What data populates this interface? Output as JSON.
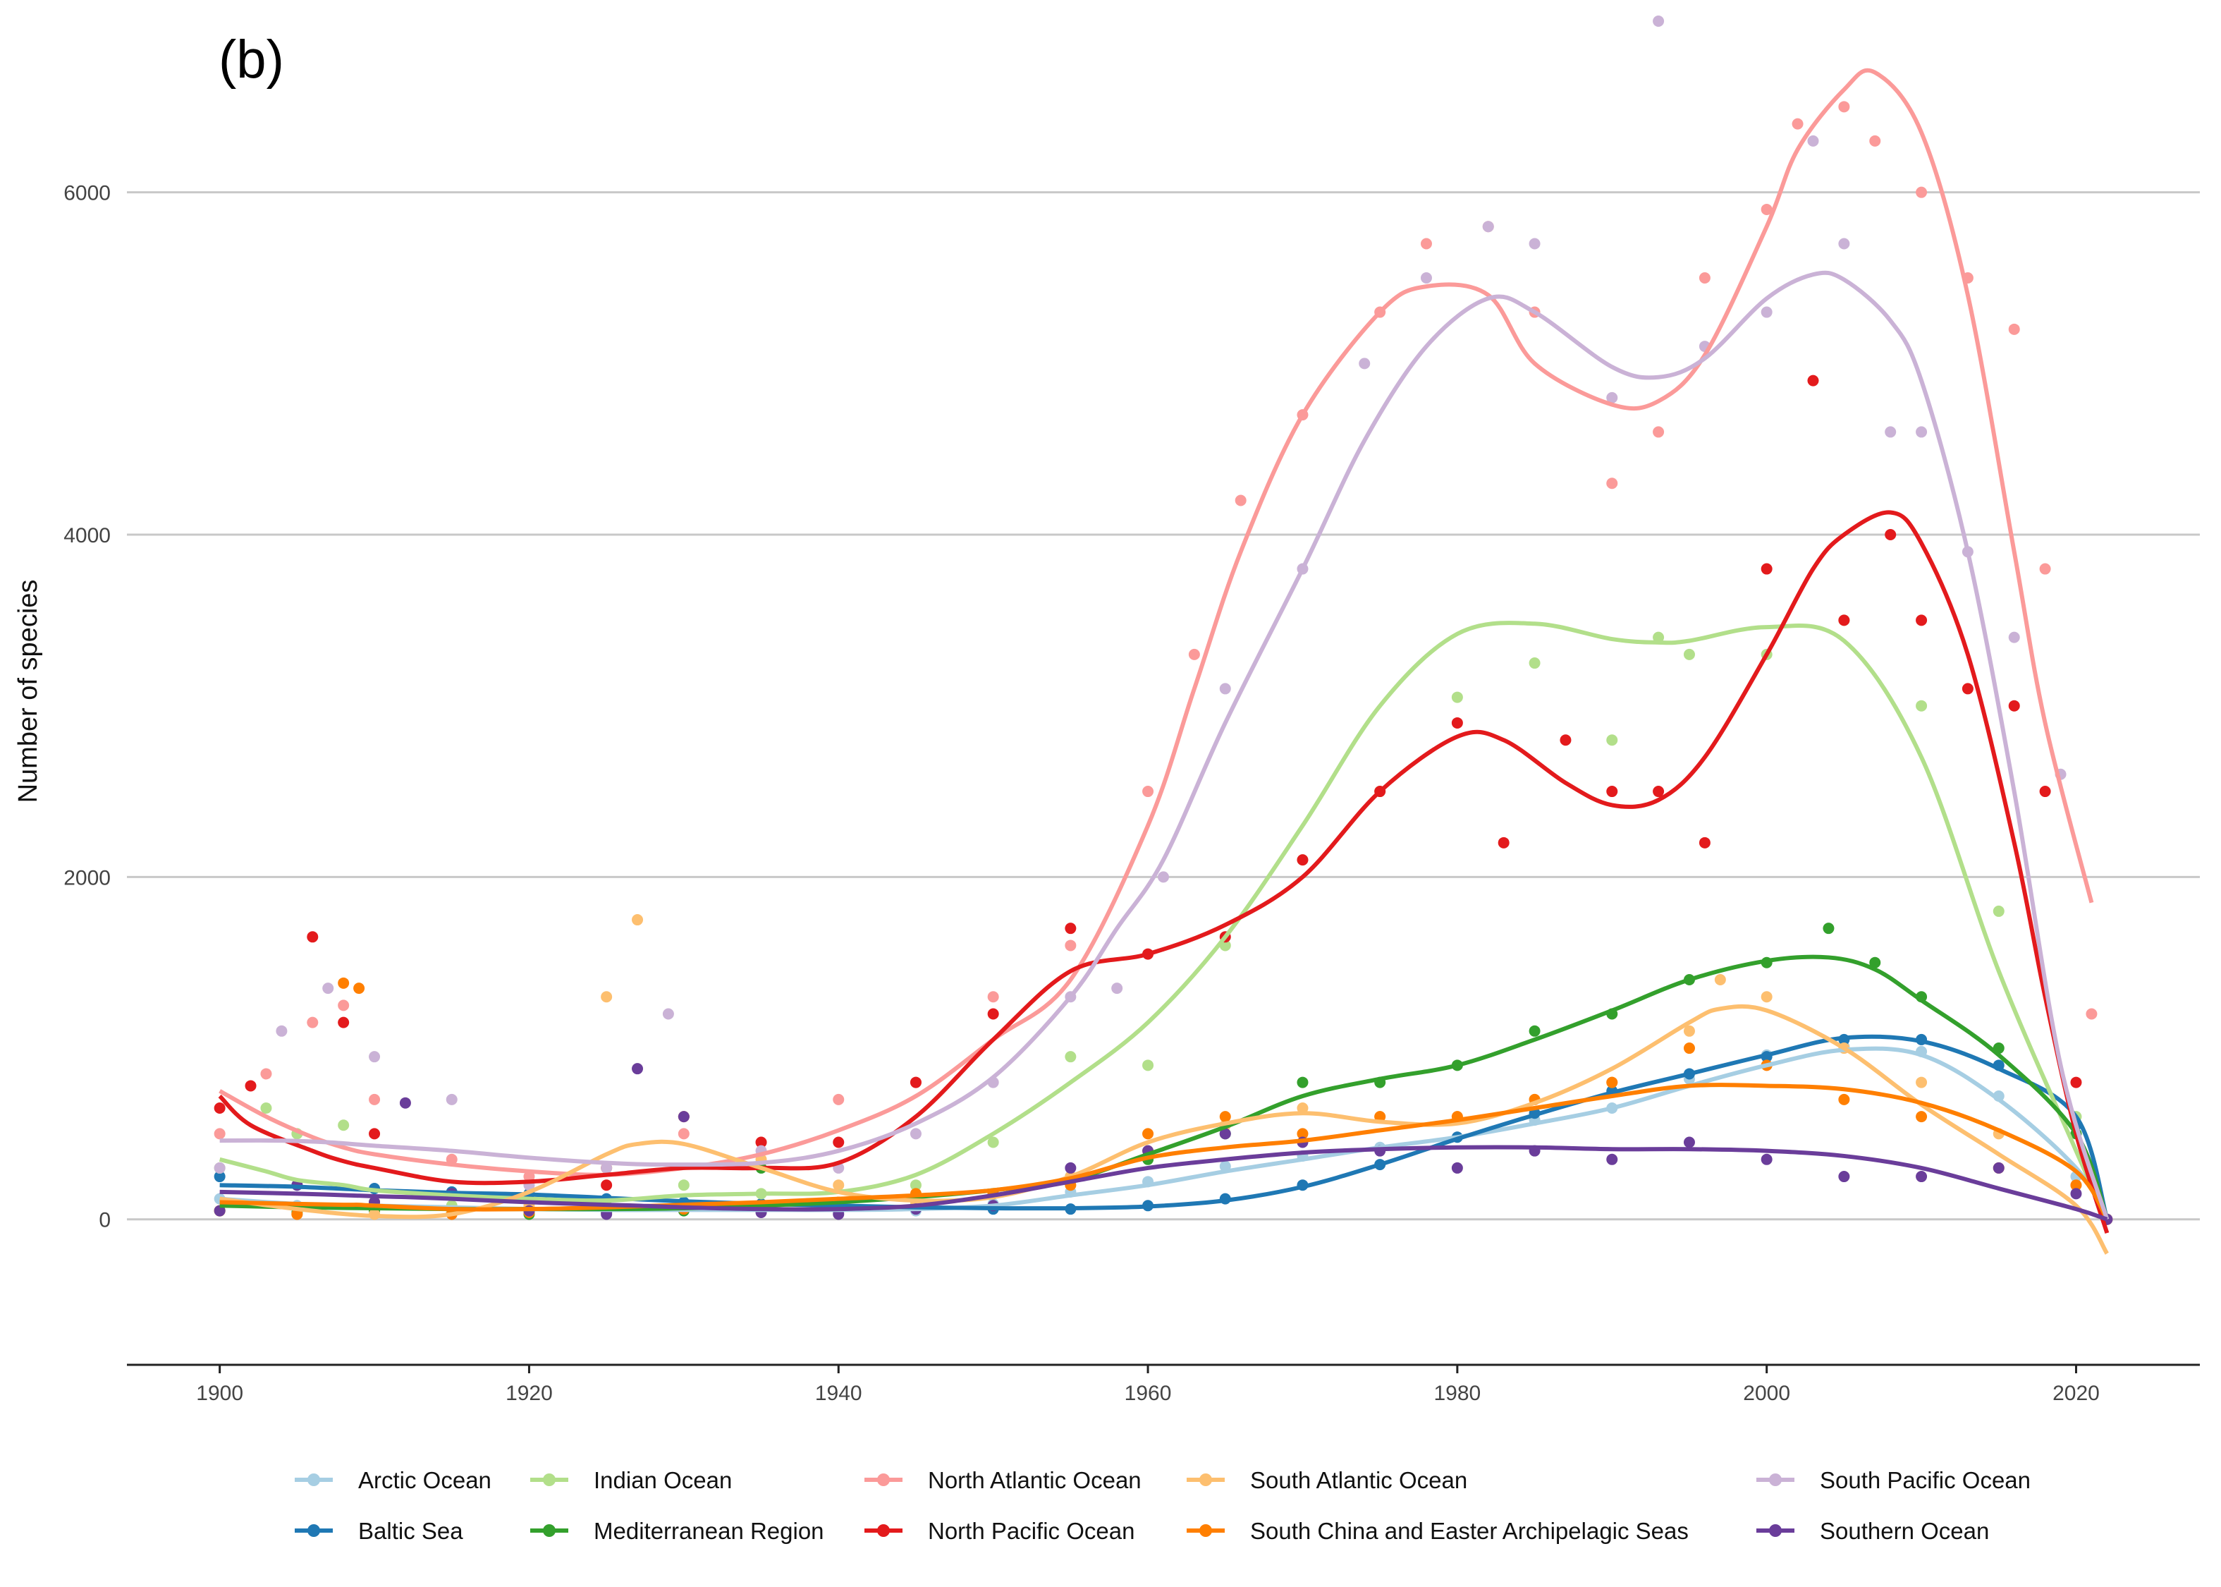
{
  "chart_data": {
    "type": "scatter",
    "title": "",
    "panel_label": "(b)",
    "xlabel": "",
    "ylabel": "Number of species",
    "xlim": [
      1894,
      2028
    ],
    "ylim": [
      -850,
      7000
    ],
    "xticks": [
      1900,
      1920,
      1940,
      1960,
      1980,
      2000,
      2020
    ],
    "yticks": [
      0,
      2000,
      4000,
      6000
    ],
    "grid": "horizontal major",
    "legend_position": "bottom",
    "series": [
      {
        "name": "Arctic Ocean",
        "color": "#a6cee3",
        "x": [
          1900,
          1905,
          1910,
          1915,
          1920,
          1925,
          1930,
          1935,
          1940,
          1945,
          1950,
          1955,
          1960,
          1965,
          1970,
          1975,
          1980,
          1985,
          1990,
          1995,
          2000,
          2005,
          2010,
          2015,
          2020,
          2022
        ],
        "y": [
          120,
          80,
          100,
          70,
          60,
          50,
          60,
          60,
          40,
          50,
          90,
          160,
          220,
          310,
          370,
          420,
          480,
          580,
          650,
          820,
          960,
          1010,
          980,
          720,
          250,
          0
        ],
        "trend": [
          120,
          90,
          80,
          70,
          60,
          55,
          55,
          55,
          55,
          60,
          80,
          140,
          200,
          280,
          350,
          420,
          480,
          560,
          650,
          780,
          900,
          990,
          960,
          700,
          300,
          0
        ]
      },
      {
        "name": "Baltic Sea",
        "color": "#1f78b4",
        "x": [
          1900,
          1905,
          1910,
          1915,
          1920,
          1925,
          1930,
          1935,
          1940,
          1945,
          1950,
          1955,
          1960,
          1965,
          1970,
          1975,
          1980,
          1985,
          1990,
          1995,
          2000,
          2005,
          2010,
          2015,
          2020,
          2022
        ],
        "y": [
          250,
          200,
          180,
          160,
          150,
          120,
          100,
          90,
          80,
          70,
          60,
          60,
          80,
          120,
          200,
          320,
          480,
          620,
          750,
          850,
          950,
          1050,
          1050,
          900,
          550,
          0
        ],
        "trend": [
          200,
          190,
          170,
          155,
          145,
          125,
          105,
          90,
          80,
          70,
          65,
          65,
          75,
          110,
          190,
          320,
          470,
          610,
          740,
          850,
          960,
          1060,
          1040,
          880,
          600,
          0
        ]
      },
      {
        "name": "Indian Ocean",
        "color": "#b2df8a",
        "x": [
          1900,
          1903,
          1905,
          1908,
          1910,
          1915,
          1920,
          1925,
          1930,
          1935,
          1940,
          1945,
          1950,
          1955,
          1960,
          1965,
          1970,
          1975,
          1980,
          1985,
          1990,
          1993,
          1995,
          2000,
          2005,
          2010,
          2015,
          2020,
          2022
        ],
        "y": [
          300,
          650,
          500,
          550,
          100,
          80,
          60,
          80,
          200,
          150,
          100,
          200,
          450,
          950,
          900,
          1600,
          2100,
          2500,
          3050,
          3250,
          2800,
          3400,
          3300,
          3300,
          3500,
          3000,
          1800,
          600,
          0
        ],
        "trend": [
          350,
          280,
          230,
          200,
          170,
          140,
          120,
          110,
          140,
          150,
          160,
          260,
          500,
          800,
          1150,
          1650,
          2300,
          3000,
          3420,
          3480,
          3390,
          3370,
          3380,
          3460,
          3380,
          2700,
          1450,
          400,
          0
        ]
      },
      {
        "name": "Mediterranean Region",
        "color": "#33a02c",
        "x": [
          1900,
          1905,
          1910,
          1915,
          1920,
          1925,
          1930,
          1935,
          1940,
          1945,
          1950,
          1955,
          1960,
          1965,
          1970,
          1975,
          1980,
          1985,
          1990,
          1995,
          2000,
          2004,
          2007,
          2010,
          2015,
          2020,
          2022
        ],
        "y": [
          50,
          40,
          50,
          40,
          30,
          40,
          50,
          300,
          60,
          100,
          150,
          250,
          350,
          500,
          800,
          800,
          900,
          1100,
          1200,
          1400,
          1500,
          1700,
          1500,
          1300,
          1000,
          500,
          0
        ],
        "trend": [
          80,
          70,
          65,
          60,
          60,
          60,
          65,
          80,
          100,
          130,
          170,
          230,
          380,
          540,
          720,
          820,
          900,
          1050,
          1220,
          1400,
          1510,
          1530,
          1460,
          1280,
          960,
          500,
          0
        ]
      },
      {
        "name": "North Atlantic Ocean",
        "color": "#fb9a99",
        "x": [
          1900,
          1903,
          1906,
          1908,
          1910,
          1915,
          1920,
          1925,
          1930,
          1935,
          1940,
          1945,
          1950,
          1955,
          1960,
          1963,
          1966,
          1970,
          1975,
          1978,
          1982,
          1985,
          1990,
          1993,
          1996,
          2000,
          2002,
          2005,
          2007,
          2010,
          2013,
          2016,
          2018,
          2021
        ],
        "y": [
          500,
          850,
          1150,
          1250,
          700,
          350,
          250,
          300,
          500,
          450,
          700,
          800,
          1300,
          1600,
          2500,
          3300,
          4200,
          4700,
          5300,
          5700,
          5800,
          5300,
          4300,
          4600,
          5500,
          5900,
          6400,
          6500,
          6300,
          6000,
          5500,
          5200,
          3800,
          1200
        ],
        "trend": [
          750,
          600,
          480,
          420,
          380,
          320,
          280,
          260,
          300,
          380,
          520,
          720,
          1050,
          1400,
          2300,
          3100,
          3900,
          4700,
          5300,
          5450,
          5400,
          5000,
          4760,
          4780,
          5050,
          5800,
          6250,
          6600,
          6700,
          6350,
          5400,
          3900,
          2900,
          1850
        ]
      },
      {
        "name": "North Pacific Ocean",
        "color": "#e31a1c",
        "x": [
          1900,
          1902,
          1906,
          1908,
          1910,
          1915,
          1920,
          1925,
          1930,
          1935,
          1940,
          1945,
          1950,
          1955,
          1960,
          1965,
          1970,
          1975,
          1980,
          1983,
          1987,
          1990,
          1993,
          1996,
          2000,
          2003,
          2005,
          2008,
          2010,
          2013,
          2016,
          2018,
          2020,
          2022
        ],
        "y": [
          650,
          780,
          1650,
          1150,
          500,
          150,
          100,
          200,
          600,
          450,
          450,
          800,
          1200,
          1700,
          1550,
          1650,
          2100,
          2500,
          2900,
          2200,
          2800,
          2500,
          2500,
          2200,
          3800,
          4900,
          3500,
          4000,
          3500,
          3100,
          3000,
          2500,
          800,
          0
        ],
        "trend": [
          720,
          550,
          400,
          340,
          300,
          220,
          220,
          260,
          300,
          300,
          330,
          600,
          1050,
          1450,
          1550,
          1720,
          2000,
          2500,
          2820,
          2800,
          2550,
          2420,
          2450,
          2700,
          3300,
          3800,
          4000,
          4130,
          3950,
          3300,
          2200,
          1300,
          500,
          -80
        ]
      },
      {
        "name": "South Atlantic Ocean",
        "color": "#fdbf6f",
        "x": [
          1900,
          1905,
          1910,
          1915,
          1920,
          1925,
          1927,
          1930,
          1935,
          1940,
          1945,
          1950,
          1955,
          1960,
          1965,
          1970,
          1975,
          1980,
          1985,
          1990,
          1995,
          1997,
          2000,
          2005,
          2010,
          2015,
          2020,
          2022
        ],
        "y": [
          50,
          30,
          30,
          40,
          80,
          1300,
          1750,
          600,
          350,
          200,
          100,
          150,
          250,
          400,
          550,
          650,
          600,
          600,
          700,
          800,
          1100,
          1400,
          1300,
          1000,
          800,
          500,
          200,
          0
        ],
        "trend": [
          120,
          60,
          20,
          30,
          160,
          380,
          440,
          440,
          300,
          160,
          110,
          130,
          250,
          450,
          560,
          620,
          570,
          560,
          680,
          880,
          1150,
          1230,
          1220,
          1000,
          670,
          380,
          80,
          -200
        ]
      },
      {
        "name": "South China and Easter Archipelagic Seas",
        "color": "#ff7f00",
        "x": [
          1900,
          1905,
          1908,
          1909,
          1910,
          1915,
          1920,
          1925,
          1930,
          1935,
          1940,
          1945,
          1950,
          1955,
          1960,
          1965,
          1970,
          1975,
          1980,
          1985,
          1990,
          1995,
          2000,
          2005,
          2010,
          2015,
          2020,
          2022
        ],
        "y": [
          50,
          30,
          1380,
          1350,
          100,
          30,
          40,
          300,
          60,
          60,
          100,
          150,
          150,
          200,
          500,
          600,
          500,
          600,
          600,
          700,
          800,
          1000,
          900,
          700,
          600,
          300,
          200,
          0
        ],
        "trend": [
          100,
          90,
          85,
          85,
          80,
          60,
          60,
          70,
          85,
          100,
          120,
          140,
          170,
          240,
          360,
          420,
          460,
          520,
          580,
          650,
          720,
          780,
          780,
          760,
          680,
          520,
          280,
          0
        ]
      },
      {
        "name": "South Pacific Ocean",
        "color": "#cab2d6",
        "x": [
          1900,
          1904,
          1907,
          1910,
          1915,
          1920,
          1925,
          1929,
          1935,
          1940,
          1945,
          1950,
          1955,
          1958,
          1961,
          1965,
          1970,
          1974,
          1978,
          1982,
          1985,
          1990,
          1993,
          1996,
          2000,
          2003,
          2005,
          2008,
          2010,
          2013,
          2016,
          2019,
          2022
        ],
        "y": [
          300,
          1100,
          1350,
          950,
          700,
          200,
          300,
          1200,
          400,
          300,
          500,
          800,
          1300,
          1350,
          2000,
          3100,
          3800,
          5000,
          5500,
          5800,
          5700,
          4800,
          7000,
          5100,
          5300,
          6300,
          5700,
          4600,
          4600,
          3900,
          3400,
          2600,
          0
        ],
        "trend": [
          460,
          460,
          450,
          430,
          400,
          360,
          330,
          320,
          330,
          400,
          560,
          830,
          1300,
          1700,
          2100,
          2900,
          3800,
          4550,
          5100,
          5380,
          5300,
          4980,
          4920,
          5030,
          5380,
          5520,
          5490,
          5250,
          4900,
          3900,
          2500,
          900,
          0
        ]
      },
      {
        "name": "Southern Ocean",
        "color": "#6a3d9a",
        "x": [
          1900,
          1905,
          1910,
          1912,
          1915,
          1920,
          1925,
          1927,
          1930,
          1935,
          1940,
          1945,
          1950,
          1955,
          1960,
          1965,
          1970,
          1975,
          1980,
          1985,
          1990,
          1995,
          2000,
          2005,
          2010,
          2015,
          2020,
          2022
        ],
        "y": [
          50,
          200,
          100,
          680,
          150,
          50,
          30,
          880,
          600,
          40,
          30,
          60,
          80,
          300,
          400,
          500,
          450,
          400,
          300,
          400,
          350,
          450,
          350,
          250,
          250,
          300,
          150,
          0
        ],
        "trend": [
          160,
          150,
          135,
          130,
          120,
          100,
          85,
          80,
          70,
          60,
          60,
          80,
          140,
          220,
          300,
          350,
          390,
          410,
          420,
          420,
          410,
          410,
          400,
          370,
          300,
          180,
          60,
          0
        ]
      }
    ]
  }
}
